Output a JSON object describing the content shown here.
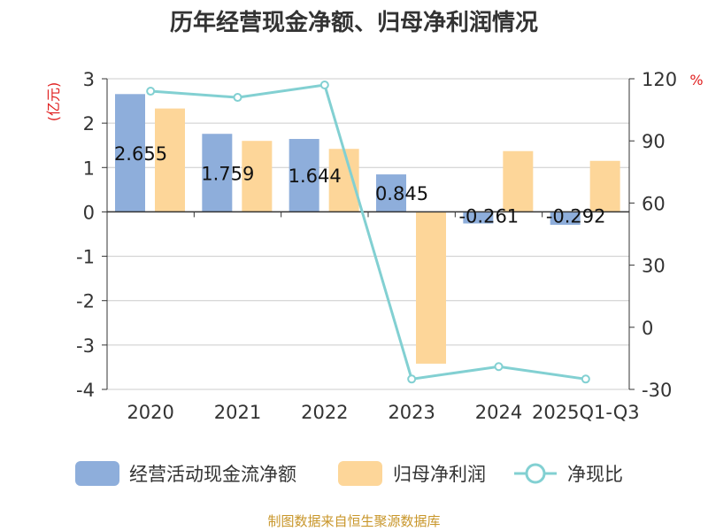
{
  "chart_data": {
    "type": "bar",
    "title": "历年经营现金净额、归母净利润情况",
    "categories": [
      "2020",
      "2021",
      "2022",
      "2023",
      "2024",
      "2025Q1-Q3"
    ],
    "y_left": {
      "unit": "(亿元)",
      "ylim": [
        -4,
        3
      ],
      "ticks": [
        "3",
        "2",
        "1",
        "0",
        "-1",
        "-2",
        "-3",
        "-4"
      ]
    },
    "y_right": {
      "unit": "%",
      "ylim": [
        -30,
        120
      ],
      "ticks": [
        "120",
        "90",
        "60",
        "30",
        "0",
        "-30"
      ]
    },
    "series": [
      {
        "name": "经营活动现金流净额",
        "type": "bar",
        "axis": "left",
        "color": "#8eaedb",
        "values": [
          2.655,
          1.759,
          1.644,
          0.845,
          -0.261,
          -0.292
        ],
        "labels": [
          "2.655",
          "1.759",
          "1.644",
          "0.845",
          "-0.261",
          "-0.292"
        ]
      },
      {
        "name": "归母净利润",
        "type": "bar",
        "axis": "left",
        "color": "#fdd699",
        "values": [
          2.33,
          1.6,
          1.42,
          -3.42,
          1.37,
          1.15
        ]
      },
      {
        "name": "净现比",
        "type": "line",
        "axis": "right",
        "color": "#82d0d2",
        "values": [
          114,
          111,
          117,
          -25,
          -19,
          -25
        ]
      }
    ],
    "grid": true,
    "legend_position": "bottom"
  },
  "source": "制图数据来自恒生聚源数据库"
}
